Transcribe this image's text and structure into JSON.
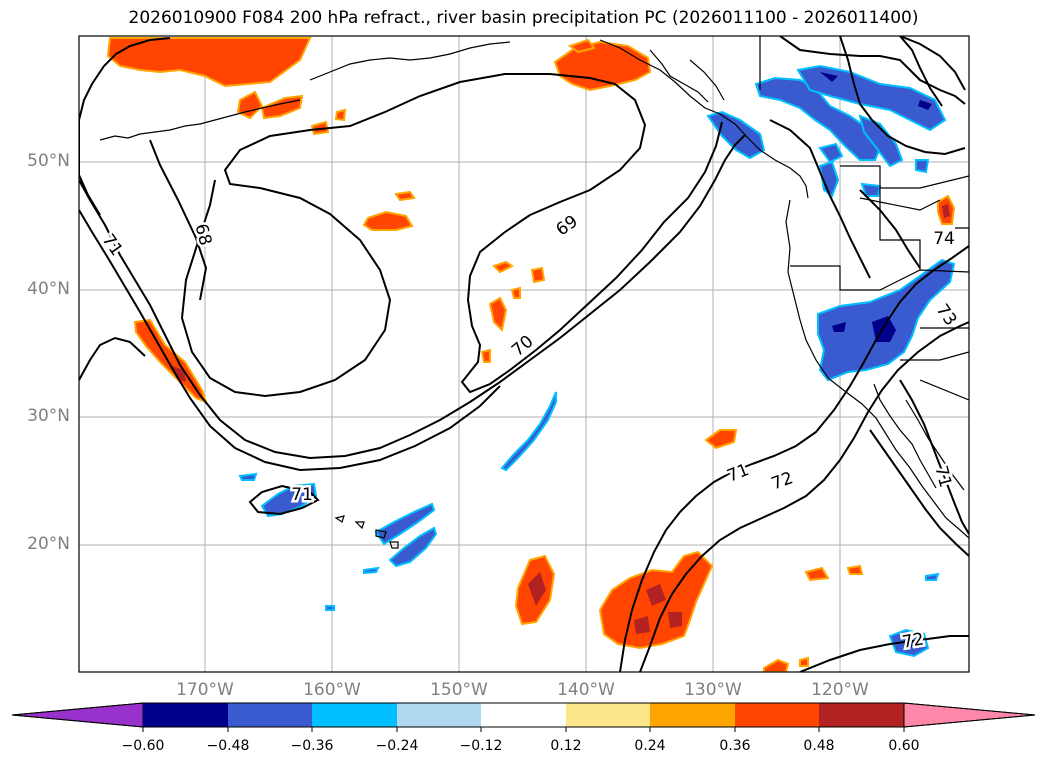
{
  "title": "2026010900 F084 200 hPa refract., river basin precipitation PC (2026011100 - 2026011400)",
  "lat_labels": [
    "50°N",
    "40°N",
    "30°N",
    "20°N"
  ],
  "lon_labels": [
    "170°W",
    "160°W",
    "150°W",
    "140°W",
    "130°W",
    "120°W"
  ],
  "contour_labels": [
    "68",
    "69",
    "70",
    "71",
    "71",
    "71",
    "72",
    "72",
    "73",
    "74",
    "71"
  ],
  "colorbar": {
    "ticks": [
      "−0.60",
      "−0.48",
      "−0.36",
      "−0.24",
      "−0.12",
      "0.12",
      "0.24",
      "0.36",
      "0.48",
      "0.60"
    ],
    "colors": [
      "#9932cc",
      "#00008b",
      "#3a5bcf",
      "#00bfff",
      "#add8f0",
      "#ffffff",
      "#fde68a",
      "#ffa500",
      "#ff4500",
      "#b22222",
      "#ff88aa"
    ]
  }
}
